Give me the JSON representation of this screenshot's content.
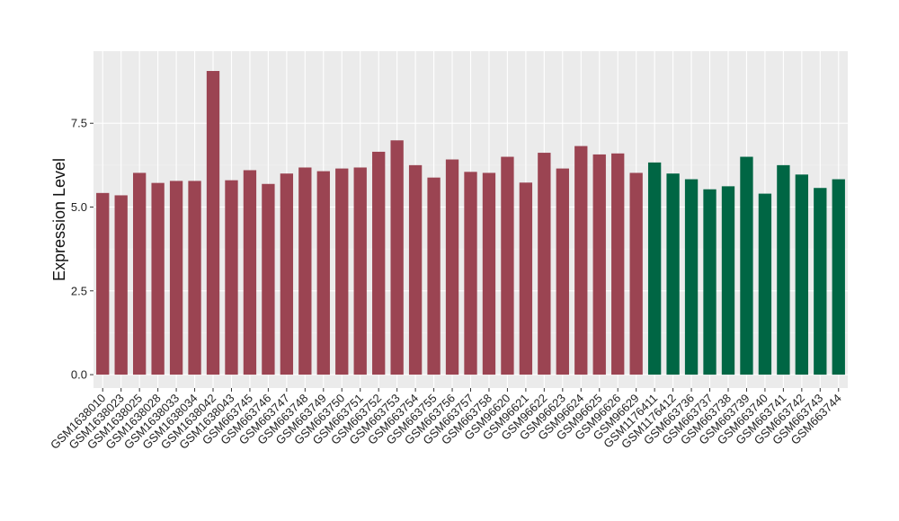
{
  "chart_data": {
    "type": "bar",
    "xlabel": "",
    "ylabel": "Expression Level",
    "ylim": [
      -0.4,
      9.65
    ],
    "yticks": [
      0.0,
      2.5,
      5.0,
      7.5
    ],
    "ytick_labels": [
      "0.0",
      "2.5",
      "5.0",
      "7.5"
    ],
    "grid": true,
    "legend": "none",
    "colors": {
      "group_a": "#9b4452",
      "group_b": "#006644",
      "panel": "#ebebeb",
      "grid_major": "#ffffff"
    },
    "categories": [
      "GSM1638010",
      "GSM1638023",
      "GSM1638025",
      "GSM1638028",
      "GSM1638033",
      "GSM1638034",
      "GSM1638042",
      "GSM1638043",
      "GSM663745",
      "GSM663746",
      "GSM663747",
      "GSM663748",
      "GSM663749",
      "GSM663750",
      "GSM663751",
      "GSM663752",
      "GSM663753",
      "GSM663754",
      "GSM663755",
      "GSM663756",
      "GSM663757",
      "GSM663758",
      "GSM96620",
      "GSM96621",
      "GSM96622",
      "GSM96623",
      "GSM96624",
      "GSM96625",
      "GSM96626",
      "GSM96629",
      "GSM1176411",
      "GSM1176412",
      "GSM663736",
      "GSM663737",
      "GSM663738",
      "GSM663739",
      "GSM663740",
      "GSM663741",
      "GSM663742",
      "GSM663743",
      "GSM663744"
    ],
    "values": [
      5.42,
      5.35,
      6.02,
      5.72,
      5.78,
      5.78,
      9.06,
      5.8,
      6.1,
      5.69,
      6.0,
      6.18,
      6.07,
      6.15,
      6.18,
      6.65,
      6.99,
      6.25,
      5.88,
      6.42,
      6.05,
      6.02,
      6.5,
      5.73,
      6.62,
      6.15,
      6.82,
      6.57,
      6.6,
      6.02,
      6.33,
      6.0,
      5.83,
      5.53,
      5.62,
      6.5,
      5.4,
      6.25,
      5.97,
      5.57,
      5.83
    ],
    "groups": [
      "group_a",
      "group_a",
      "group_a",
      "group_a",
      "group_a",
      "group_a",
      "group_a",
      "group_a",
      "group_a",
      "group_a",
      "group_a",
      "group_a",
      "group_a",
      "group_a",
      "group_a",
      "group_a",
      "group_a",
      "group_a",
      "group_a",
      "group_a",
      "group_a",
      "group_a",
      "group_a",
      "group_a",
      "group_a",
      "group_a",
      "group_a",
      "group_a",
      "group_a",
      "group_a",
      "group_b",
      "group_b",
      "group_b",
      "group_b",
      "group_b",
      "group_b",
      "group_b",
      "group_b",
      "group_b",
      "group_b",
      "group_b"
    ]
  }
}
